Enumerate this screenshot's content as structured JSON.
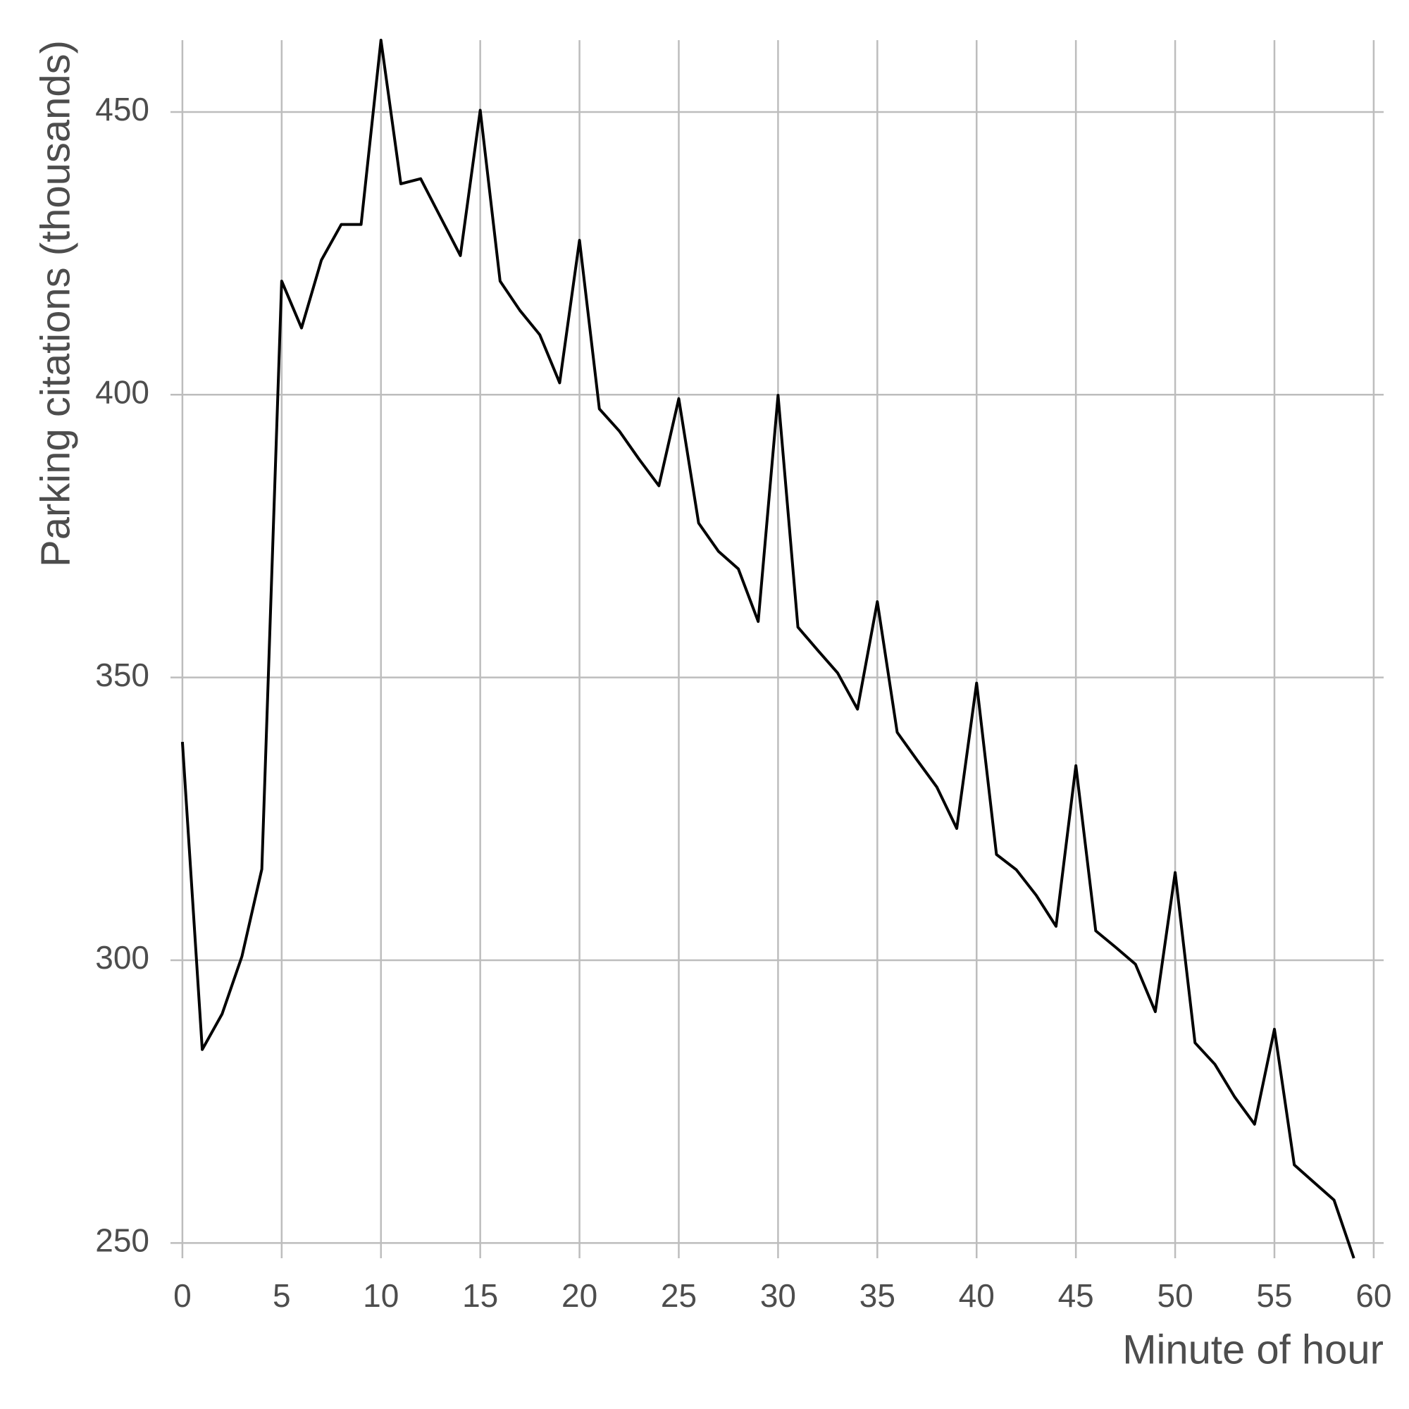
{
  "chart_data": {
    "type": "line",
    "x_label": "Minute of hour",
    "y_label": "Parking citations (thousands)",
    "x": [
      0,
      1,
      2,
      3,
      4,
      5,
      6,
      7,
      8,
      9,
      10,
      11,
      12,
      13,
      14,
      15,
      16,
      17,
      18,
      19,
      20,
      21,
      22,
      23,
      24,
      25,
      26,
      27,
      28,
      29,
      30,
      31,
      32,
      33,
      34,
      35,
      36,
      37,
      38,
      39,
      40,
      41,
      42,
      43,
      44,
      45,
      46,
      47,
      48,
      49,
      50,
      51,
      52,
      53,
      54,
      55,
      56,
      57,
      58,
      59
    ],
    "series": [
      {
        "color": "#000000",
        "values": [
          338.6,
          284.2,
          290.5,
          300.7,
          316.1,
          420.1,
          411.8,
          423.8,
          430.1,
          430.1,
          462.7,
          437.3,
          438.2,
          431.4,
          424.6,
          450.3,
          420.1,
          414.9,
          410.6,
          402.1,
          427.3,
          397.5,
          393.6,
          388.6,
          383.9,
          399.3,
          377.3,
          372.3,
          369.2,
          359.9,
          399.9,
          358.9,
          354.8,
          350.8,
          344.4,
          363.4,
          340.3,
          335.4,
          330.6,
          323.3,
          349.0,
          318.7,
          316.0,
          311.5,
          306.0,
          334.4,
          305.2,
          302.3,
          299.3,
          290.9,
          315.5,
          285.4,
          281.6,
          275.8,
          271.0,
          287.8,
          263.8,
          260.7,
          257.6,
          247.3
        ]
      }
    ],
    "xlim": [
      -0.6,
      60.5
    ],
    "xticks": [
      0,
      5,
      10,
      15,
      20,
      25,
      30,
      35,
      40,
      45,
      50,
      55,
      60
    ],
    "ylim": [
      247.3,
      462.7
    ],
    "yticks": [
      250,
      300,
      350,
      400,
      450
    ],
    "grid": true
  }
}
